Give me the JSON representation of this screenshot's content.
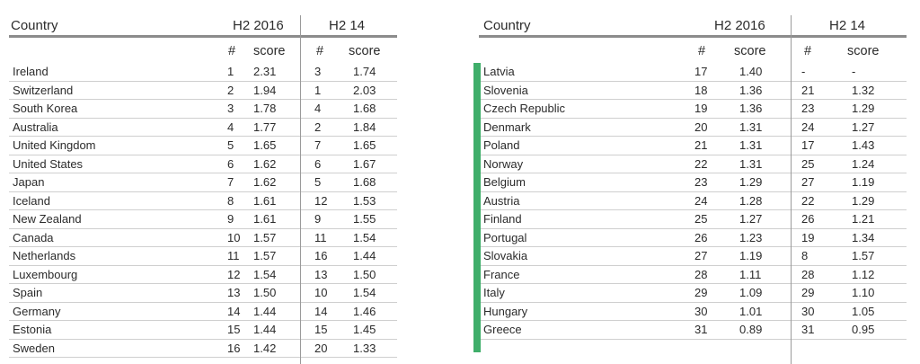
{
  "headers": {
    "country": "Country",
    "period_a": "H2 2016",
    "period_b": "H2 14",
    "rank": "#",
    "score": "score"
  },
  "left_table": {
    "rows": [
      {
        "country": "Ireland",
        "rank16": "1",
        "score16": "2.31",
        "rank14": "3",
        "score14": "1.74"
      },
      {
        "country": "Switzerland",
        "rank16": "2",
        "score16": "1.94",
        "rank14": "1",
        "score14": "2.03"
      },
      {
        "country": "South Korea",
        "rank16": "3",
        "score16": "1.78",
        "rank14": "4",
        "score14": "1.68"
      },
      {
        "country": "Australia",
        "rank16": "4",
        "score16": "1.77",
        "rank14": "2",
        "score14": "1.84"
      },
      {
        "country": "United Kingdom",
        "rank16": "5",
        "score16": "1.65",
        "rank14": "7",
        "score14": "1.65"
      },
      {
        "country": "United States",
        "rank16": "6",
        "score16": "1.62",
        "rank14": "6",
        "score14": "1.67"
      },
      {
        "country": "Japan",
        "rank16": "7",
        "score16": "1.62",
        "rank14": "5",
        "score14": "1.68"
      },
      {
        "country": "Iceland",
        "rank16": "8",
        "score16": "1.61",
        "rank14": "12",
        "score14": "1.53"
      },
      {
        "country": "New Zealand",
        "rank16": "9",
        "score16": "1.61",
        "rank14": "9",
        "score14": "1.55"
      },
      {
        "country": "Canada",
        "rank16": "10",
        "score16": "1.57",
        "rank14": "11",
        "score14": "1.54"
      },
      {
        "country": "Netherlands",
        "rank16": "11",
        "score16": "1.57",
        "rank14": "16",
        "score14": "1.44"
      },
      {
        "country": "Luxembourg",
        "rank16": "12",
        "score16": "1.54",
        "rank14": "13",
        "score14": "1.50"
      },
      {
        "country": "Spain",
        "rank16": "13",
        "score16": "1.50",
        "rank14": "10",
        "score14": "1.54"
      },
      {
        "country": "Germany",
        "rank16": "14",
        "score16": "1.44",
        "rank14": "14",
        "score14": "1.46"
      },
      {
        "country": "Estonia",
        "rank16": "15",
        "score16": "1.44",
        "rank14": "15",
        "score14": "1.45"
      },
      {
        "country": "Sweden",
        "rank16": "16",
        "score16": "1.42",
        "rank14": "20",
        "score14": "1.33"
      }
    ]
  },
  "right_table": {
    "highlight_color": "#3fae6a",
    "rows": [
      {
        "country": "Latvia",
        "rank16": "17",
        "score16": "1.40",
        "rank14": "-",
        "score14": "-"
      },
      {
        "country": "Slovenia",
        "rank16": "18",
        "score16": "1.36",
        "rank14": "21",
        "score14": "1.32"
      },
      {
        "country": "Czech Republic",
        "rank16": "19",
        "score16": "1.36",
        "rank14": "23",
        "score14": "1.29"
      },
      {
        "country": "Denmark",
        "rank16": "20",
        "score16": "1.31",
        "rank14": "24",
        "score14": "1.27"
      },
      {
        "country": "Poland",
        "rank16": "21",
        "score16": "1.31",
        "rank14": "17",
        "score14": "1.43"
      },
      {
        "country": "Norway",
        "rank16": "22",
        "score16": "1.31",
        "rank14": "25",
        "score14": "1.24"
      },
      {
        "country": "Belgium",
        "rank16": "23",
        "score16": "1.29",
        "rank14": "27",
        "score14": "1.19"
      },
      {
        "country": "Austria",
        "rank16": "24",
        "score16": "1.28",
        "rank14": "22",
        "score14": "1.29"
      },
      {
        "country": "Finland",
        "rank16": "25",
        "score16": "1.27",
        "rank14": "26",
        "score14": "1.21"
      },
      {
        "country": "Portugal",
        "rank16": "26",
        "score16": "1.23",
        "rank14": "19",
        "score14": "1.34"
      },
      {
        "country": "Slovakia",
        "rank16": "27",
        "score16": "1.19",
        "rank14": "8",
        "score14": "1.57"
      },
      {
        "country": "France",
        "rank16": "28",
        "score16": "1.11",
        "rank14": "28",
        "score14": "1.12"
      },
      {
        "country": "Italy",
        "rank16": "29",
        "score16": "1.09",
        "rank14": "29",
        "score14": "1.10"
      },
      {
        "country": "Hungary",
        "rank16": "30",
        "score16": "1.01",
        "rank14": "30",
        "score14": "1.05"
      },
      {
        "country": "Greece",
        "rank16": "31",
        "score16": "0.89",
        "rank14": "31",
        "score14": "0.95"
      }
    ]
  }
}
